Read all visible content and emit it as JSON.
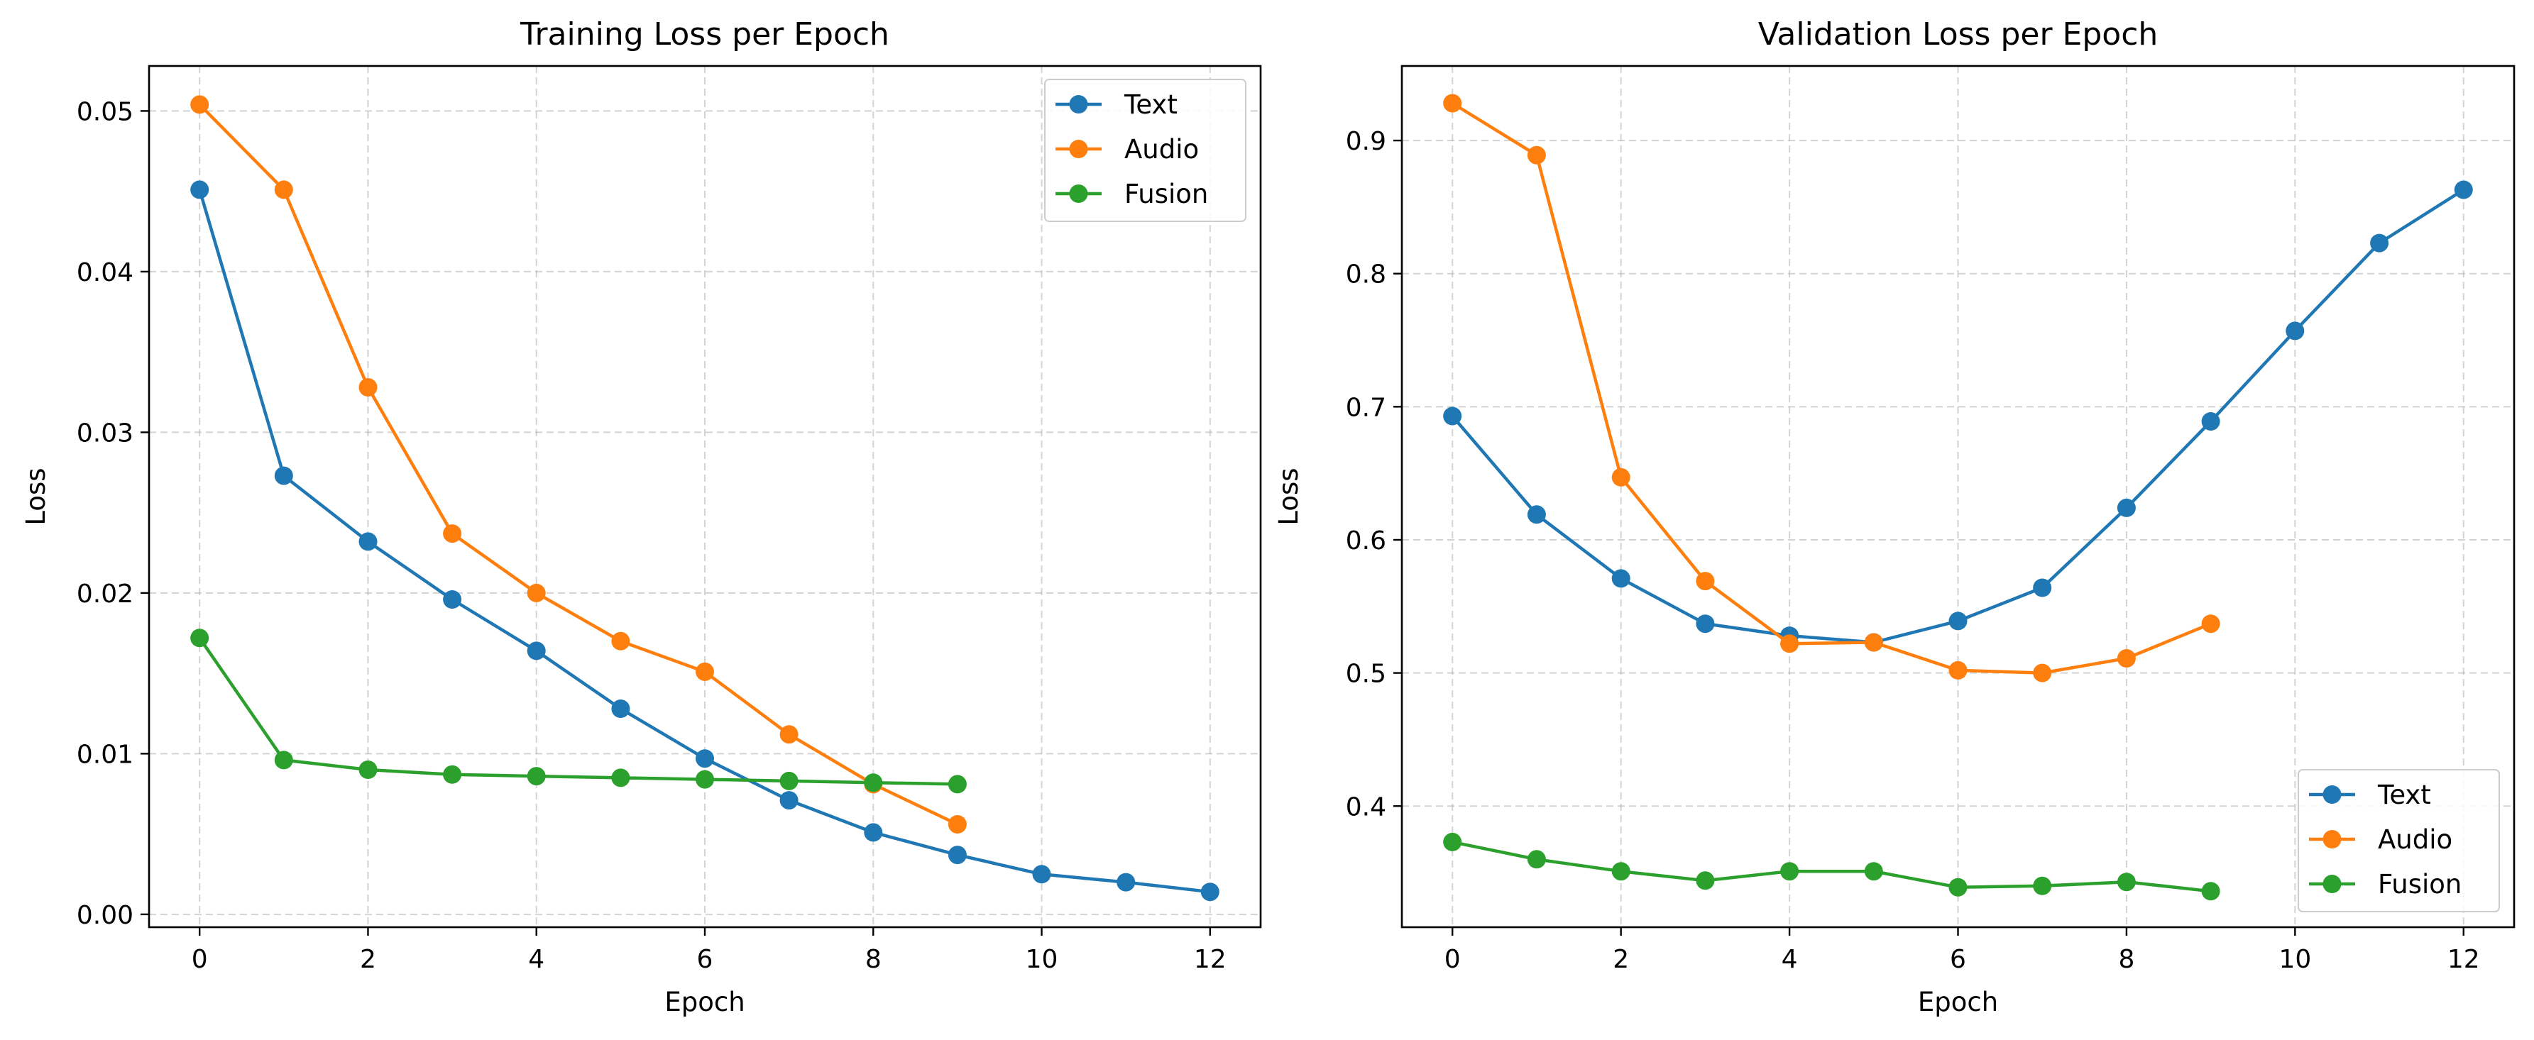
{
  "chart_data": [
    {
      "type": "line",
      "title": "Training Loss per Epoch",
      "xlabel": "Epoch",
      "ylabel": "Loss",
      "xlim": [
        -0.6,
        12.6
      ],
      "ylim": [
        -0.0008,
        0.0528
      ],
      "xticks": [
        0,
        2,
        4,
        6,
        8,
        10,
        12
      ],
      "yticks": [
        0.0,
        0.01,
        0.02,
        0.03,
        0.04,
        0.05
      ],
      "ytick_labels": [
        "0.00",
        "0.01",
        "0.02",
        "0.03",
        "0.04",
        "0.05"
      ],
      "grid": true,
      "legend_position": "top-right",
      "series": [
        {
          "name": "Text",
          "color": "#1f77b4",
          "x": [
            0,
            1,
            2,
            3,
            4,
            5,
            6,
            7,
            8,
            9,
            10,
            11,
            12
          ],
          "values": [
            0.0451,
            0.0273,
            0.0232,
            0.0196,
            0.0164,
            0.0128,
            0.0097,
            0.0071,
            0.0051,
            0.0037,
            0.0025,
            0.002,
            0.0014
          ]
        },
        {
          "name": "Audio",
          "color": "#ff7f0e",
          "x": [
            0,
            1,
            2,
            3,
            4,
            5,
            6,
            7,
            8,
            9
          ],
          "values": [
            0.0504,
            0.0451,
            0.0328,
            0.0237,
            0.02,
            0.017,
            0.0151,
            0.0112,
            0.0081,
            0.0056
          ]
        },
        {
          "name": "Fusion",
          "color": "#2ca02c",
          "x": [
            0,
            1,
            2,
            3,
            4,
            5,
            6,
            7,
            8,
            9
          ],
          "values": [
            0.0172,
            0.0096,
            0.009,
            0.0087,
            0.0086,
            0.0085,
            0.0084,
            0.0083,
            0.0082,
            0.0081
          ]
        }
      ]
    },
    {
      "type": "line",
      "title": "Validation Loss per Epoch",
      "xlabel": "Epoch",
      "ylabel": "Loss",
      "xlim": [
        -0.6,
        12.6
      ],
      "ylim": [
        0.309,
        0.956
      ],
      "xticks": [
        0,
        2,
        4,
        6,
        8,
        10,
        12
      ],
      "yticks": [
        0.4,
        0.5,
        0.6,
        0.7,
        0.8,
        0.9
      ],
      "ytick_labels": [
        "0.4",
        "0.5",
        "0.6",
        "0.7",
        "0.8",
        "0.9"
      ],
      "grid": true,
      "legend_position": "bottom-right",
      "series": [
        {
          "name": "Text",
          "color": "#1f77b4",
          "x": [
            0,
            1,
            2,
            3,
            4,
            5,
            6,
            7,
            8,
            9,
            10,
            11,
            12
          ],
          "values": [
            0.693,
            0.619,
            0.571,
            0.537,
            0.528,
            0.523,
            0.539,
            0.564,
            0.624,
            0.689,
            0.757,
            0.823,
            0.863
          ]
        },
        {
          "name": "Audio",
          "color": "#ff7f0e",
          "x": [
            0,
            1,
            2,
            3,
            4,
            5,
            6,
            7,
            8,
            9
          ],
          "values": [
            0.928,
            0.889,
            0.647,
            0.569,
            0.522,
            0.523,
            0.502,
            0.5,
            0.511,
            0.537
          ]
        },
        {
          "name": "Fusion",
          "color": "#2ca02c",
          "x": [
            0,
            1,
            2,
            3,
            4,
            5,
            6,
            7,
            8,
            9
          ],
          "values": [
            0.373,
            0.36,
            0.351,
            0.344,
            0.351,
            0.351,
            0.339,
            0.34,
            0.343,
            0.336
          ]
        }
      ]
    }
  ]
}
